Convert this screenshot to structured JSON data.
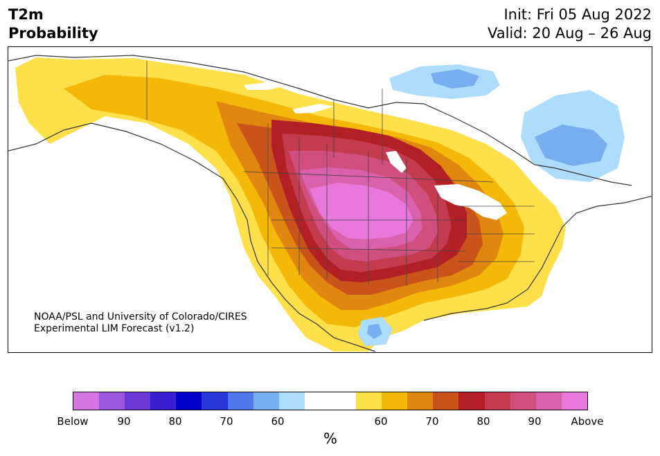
{
  "title": {
    "line1": "T2m",
    "line2": "Probability"
  },
  "dates": {
    "init": "Init: Fri 05 Aug 2022",
    "valid": "Valid: 20 Aug – 26 Aug"
  },
  "credit": {
    "line1": "NOAA/PSL and University of Colorado/CIRES",
    "line2": "Experimental LIM Forecast (v1.2)"
  },
  "legend": {
    "colors": [
      "#d873e6",
      "#9b55e0",
      "#6c38d8",
      "#3a1fd2",
      "#0000cc",
      "#2637d8",
      "#4e78e8",
      "#76aef0",
      "#aedcfc",
      "#ffffff",
      "#ffffff",
      "#fee04a",
      "#f3b808",
      "#e0870f",
      "#c8541b",
      "#b21f24",
      "#c43a4f",
      "#cf4f7f",
      "#da62ac",
      "#e878dc"
    ],
    "ticks": [
      "Below",
      "90",
      "80",
      "70",
      "60",
      "60",
      "70",
      "80",
      "90",
      "Above"
    ],
    "unit": "%"
  }
}
